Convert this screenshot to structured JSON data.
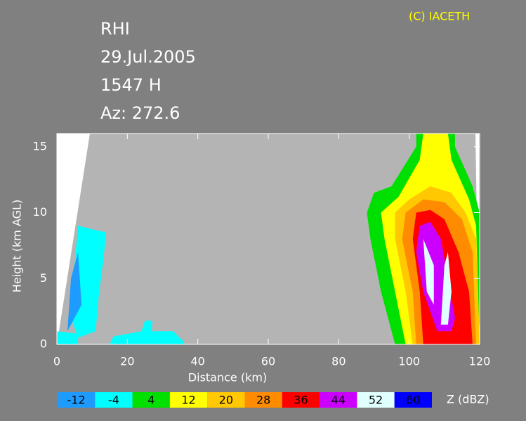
{
  "chart_data": {
    "type": "rhi",
    "title_lines": [
      "RHI",
      "29.Jul.2005",
      "1547 H",
      "Az: 272.6"
    ],
    "credit": "(C) IACETH",
    "x_label": "Distance    (km)",
    "y_label": "Height  (km AGL)",
    "xlim": [
      0,
      120
    ],
    "xticks": [
      0,
      20,
      40,
      60,
      80,
      100,
      120
    ],
    "ylim": [
      0,
      16
    ],
    "yticks": [
      0,
      5,
      10,
      15
    ],
    "colorbar": {
      "label": "Z (dBZ)",
      "levels": [
        -12,
        -4,
        4,
        12,
        20,
        28,
        36,
        44,
        52,
        60
      ],
      "colors": [
        "#1e9bff",
        "#00ffff",
        "#00e000",
        "#ffff00",
        "#ffc800",
        "#ff8c00",
        "#ff0000",
        "#cc00ff",
        "#e0ffff",
        "#0000ff"
      ]
    },
    "echoes": [
      {
        "dbz": -4,
        "x": [
          0,
          0,
          6,
          6
        ],
        "y": [
          0,
          1,
          0.8,
          0
        ]
      },
      {
        "dbz": -4,
        "x": [
          4,
          5,
          6,
          9,
          14,
          13,
          12,
          11,
          6
        ],
        "y": [
          2,
          6,
          9,
          8.8,
          8.5,
          6,
          4,
          1,
          0.5
        ]
      },
      {
        "dbz": -12,
        "x": [
          3,
          4,
          6,
          7
        ],
        "y": [
          1,
          5,
          7,
          3
        ]
      },
      {
        "dbz": -4,
        "x": [
          15,
          16,
          24,
          25,
          27,
          27,
          33,
          36,
          36
        ],
        "y": [
          0,
          0.6,
          1,
          1.8,
          1.8,
          1,
          1,
          0.2,
          0
        ]
      },
      {
        "dbz": 4,
        "x": [
          96,
          92,
          89,
          88,
          90,
          95,
          102,
          102,
          113,
          113,
          118,
          120,
          120
        ],
        "y": [
          0,
          4,
          8,
          10,
          11.5,
          12,
          15,
          16,
          16,
          15,
          12,
          10,
          0
        ]
      },
      {
        "dbz": 12,
        "x": [
          99,
          96,
          93,
          92,
          97,
          103,
          104,
          111,
          112,
          117,
          119,
          120
        ],
        "y": [
          0,
          4,
          8,
          10,
          11.2,
          14,
          16,
          16,
          14,
          11,
          9,
          0
        ]
      },
      {
        "dbz": 20,
        "x": [
          101,
          99,
          96,
          96,
          100,
          106,
          112,
          116,
          119,
          120
        ],
        "y": [
          0,
          4,
          8,
          10,
          11,
          12,
          11.5,
          10,
          8,
          0
        ]
      },
      {
        "dbz": 28,
        "x": [
          102,
          101,
          98,
          99,
          104,
          110,
          115,
          118,
          119
        ],
        "y": [
          0,
          4,
          8,
          10,
          11,
          10.8,
          9.5,
          7,
          0
        ]
      },
      {
        "dbz": 36,
        "x": [
          104,
          103,
          101,
          102,
          106,
          110,
          114,
          117,
          118
        ],
        "y": [
          0,
          4,
          8,
          10,
          10.2,
          9.5,
          7,
          4,
          0
        ]
      },
      {
        "dbz": 44,
        "x": [
          108,
          104,
          102,
          103,
          106,
          109,
          111,
          113,
          112
        ],
        "y": [
          1,
          4,
          7,
          9,
          9.3,
          8,
          5,
          2,
          1
        ]
      },
      {
        "dbz": 52,
        "x": [
          104,
          105,
          107,
          107
        ],
        "y": [
          8,
          4,
          3,
          6
        ]
      },
      {
        "dbz": 52,
        "x": [
          109,
          110,
          111,
          112,
          111
        ],
        "y": [
          1.5,
          6,
          7,
          4,
          1.5
        ]
      }
    ]
  }
}
